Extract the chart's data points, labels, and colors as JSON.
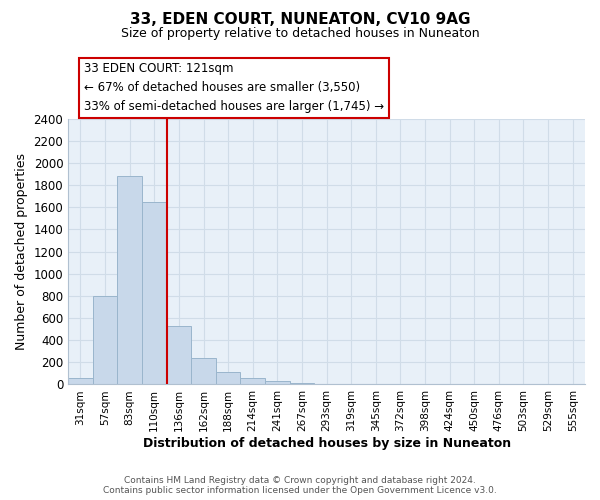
{
  "title": "33, EDEN COURT, NUNEATON, CV10 9AG",
  "subtitle": "Size of property relative to detached houses in Nuneaton",
  "xlabel": "Distribution of detached houses by size in Nuneaton",
  "ylabel": "Number of detached properties",
  "bar_color": "#c8d8ea",
  "bar_edge_color": "#9ab5cc",
  "categories": [
    "31sqm",
    "57sqm",
    "83sqm",
    "110sqm",
    "136sqm",
    "162sqm",
    "188sqm",
    "214sqm",
    "241sqm",
    "267sqm",
    "293sqm",
    "319sqm",
    "345sqm",
    "372sqm",
    "398sqm",
    "424sqm",
    "450sqm",
    "476sqm",
    "503sqm",
    "529sqm",
    "555sqm"
  ],
  "values": [
    55,
    800,
    1880,
    1650,
    530,
    235,
    110,
    55,
    30,
    15,
    0,
    0,
    0,
    0,
    0,
    0,
    0,
    0,
    0,
    0,
    0
  ],
  "property_line_bin": 4,
  "property_line_label": "33 EDEN COURT: 121sqm",
  "annotation_line1": "← 67% of detached houses are smaller (3,550)",
  "annotation_line2": "33% of semi-detached houses are larger (1,745) →",
  "annotation_box_color": "#ffffff",
  "annotation_box_edge_color": "#cc0000",
  "ylim": [
    0,
    2400
  ],
  "yticks": [
    0,
    200,
    400,
    600,
    800,
    1000,
    1200,
    1400,
    1600,
    1800,
    2000,
    2200,
    2400
  ],
  "footer_line1": "Contains HM Land Registry data © Crown copyright and database right 2024.",
  "footer_line2": "Contains public sector information licensed under the Open Government Licence v3.0.",
  "grid_color": "#d0dce8",
  "background_color": "#e8f0f8"
}
